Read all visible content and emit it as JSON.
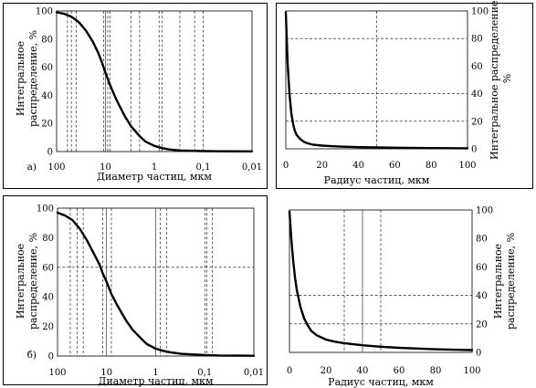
{
  "chart_data": [
    {
      "id": "a-left",
      "type": "line",
      "panel_label": "а)",
      "xlabel": "Диаметр частиц, мкм",
      "ylabel": [
        "Интегральное",
        "распределение, %"
      ],
      "x_scale": "log",
      "x_reversed": true,
      "xlim": [
        100,
        0.01
      ],
      "ylim": [
        0,
        100
      ],
      "x_ticks": [
        100,
        10,
        1,
        0.1,
        0.01
      ],
      "x_tick_labels": [
        "100",
        "10",
        "1",
        "0,1",
        "0,01"
      ],
      "y_ticks": [
        0,
        20,
        40,
        60,
        80,
        100
      ],
      "y_tick_labels": [
        "0",
        "20",
        "40",
        "60",
        "80",
        "100"
      ],
      "y_axis_side": "left",
      "grid_h": [],
      "vlines_solid": [
        10
      ],
      "vlines_dashed": [
        60,
        50,
        40,
        11,
        9,
        8,
        3,
        2,
        0.8,
        0.7,
        0.3,
        0.15,
        0.1
      ],
      "series": [
        {
          "x": [
            100,
            70,
            50,
            35,
            25,
            18,
            14,
            12,
            10,
            8,
            6,
            4,
            3,
            2,
            1.5,
            1,
            0.7,
            0.5,
            0.3,
            0.1,
            0.05,
            0.01
          ],
          "values": [
            99,
            98,
            96,
            92,
            86,
            78,
            70,
            64,
            56,
            47,
            37,
            25,
            18,
            11,
            7,
            4,
            2.5,
            1.5,
            0.8,
            0.3,
            0.2,
            0.1
          ]
        }
      ]
    },
    {
      "id": "a-right",
      "type": "line",
      "panel_label": "",
      "xlabel": "Радиус частиц, мкм",
      "ylabel": [
        "Интегральное распределение,",
        "%"
      ],
      "x_scale": "linear",
      "x_reversed": false,
      "xlim": [
        0,
        100
      ],
      "ylim": [
        0,
        100
      ],
      "x_ticks": [
        0,
        20,
        40,
        60,
        80,
        100
      ],
      "x_tick_labels": [
        "0",
        "20",
        "40",
        "60",
        "80",
        "100"
      ],
      "y_ticks": [
        0,
        20,
        40,
        60,
        80,
        100
      ],
      "y_tick_labels": [
        "0",
        "20",
        "40",
        "60",
        "80",
        "100"
      ],
      "y_axis_side": "right",
      "grid_h": [
        20,
        40,
        80
      ],
      "vlines_solid": [],
      "vlines_dashed": [
        50
      ],
      "series": [
        {
          "x": [
            0,
            1,
            2,
            3,
            4,
            5,
            6,
            8,
            10,
            12,
            15,
            20,
            25,
            30,
            40,
            50,
            60,
            80,
            100
          ],
          "values": [
            99,
            62,
            40,
            26,
            18,
            13,
            10,
            7,
            5,
            4,
            3,
            2.3,
            1.9,
            1.6,
            1.2,
            1,
            0.8,
            0.5,
            0.3
          ]
        }
      ]
    },
    {
      "id": "b-left",
      "type": "line",
      "panel_label": "б)",
      "xlabel": "Диаметр частиц, мкм",
      "ylabel": [
        "Интегральное",
        "распределение, %"
      ],
      "x_scale": "log",
      "x_reversed": true,
      "xlim": [
        100,
        0.01
      ],
      "ylim": [
        0,
        100
      ],
      "x_ticks": [
        100,
        10,
        1,
        0.1,
        0.01
      ],
      "x_tick_labels": [
        "100",
        "10",
        "1",
        "0,1",
        "0,01"
      ],
      "y_ticks": [
        0,
        20,
        40,
        60,
        80,
        100
      ],
      "y_tick_labels": [
        "0",
        "20",
        "40",
        "60",
        "80",
        "100"
      ],
      "y_axis_side": "left",
      "grid_h": [
        60
      ],
      "vlines_solid": [
        10,
        1
      ],
      "vlines_dashed": [
        55,
        40,
        30,
        12,
        8,
        0.8,
        0.6,
        0.1,
        0.09,
        0.07
      ],
      "series": [
        {
          "x": [
            100,
            70,
            50,
            35,
            25,
            18,
            14,
            12,
            10,
            8,
            6,
            4,
            3,
            2,
            1.5,
            1,
            0.7,
            0.5,
            0.3,
            0.1,
            0.05,
            0.01
          ],
          "values": [
            97,
            95,
            92,
            86,
            78,
            69,
            62,
            56,
            50,
            42,
            34,
            24,
            18,
            12,
            8,
            5,
            3.5,
            2.5,
            1.5,
            0.7,
            0.4,
            0.2
          ]
        }
      ]
    },
    {
      "id": "b-right",
      "type": "line",
      "panel_label": "",
      "xlabel": "Радиус частиц, мкм",
      "ylabel": [
        "Интегральное",
        "распределение, %"
      ],
      "x_scale": "linear",
      "x_reversed": false,
      "xlim": [
        0,
        100
      ],
      "ylim": [
        0,
        100
      ],
      "x_ticks": [
        0,
        20,
        40,
        60,
        80,
        100
      ],
      "x_tick_labels": [
        "0",
        "20",
        "40",
        "60",
        "80",
        "100"
      ],
      "y_ticks": [
        0,
        20,
        40,
        60,
        80,
        100
      ],
      "y_tick_labels": [
        "0",
        "20",
        "40",
        "60",
        "80",
        "100"
      ],
      "y_axis_side": "right",
      "grid_h": [
        20,
        40
      ],
      "vlines_solid": [
        40
      ],
      "vlines_dashed": [
        30,
        50
      ],
      "series": [
        {
          "x": [
            0,
            1,
            2,
            3,
            4,
            6,
            8,
            10,
            12,
            15,
            20,
            25,
            30,
            40,
            50,
            60,
            80,
            100
          ],
          "values": [
            99,
            80,
            65,
            53,
            44,
            32,
            24,
            19,
            15,
            12,
            9,
            7.5,
            6.5,
            5,
            4,
            3.2,
            2.2,
            1.6
          ]
        }
      ]
    }
  ]
}
